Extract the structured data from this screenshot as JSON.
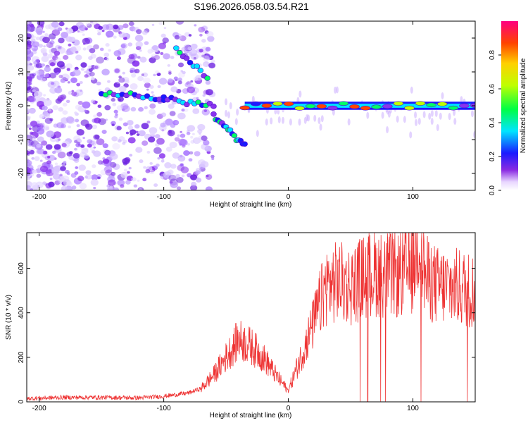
{
  "title": "S196.2026.058.03.54.R21",
  "chart_data": [
    {
      "type": "heatmap",
      "xlabel": "Height of straight line (km)",
      "ylabel": "Frequency (Hz)",
      "xlim": [
        -210,
        150
      ],
      "ylim": [
        -25,
        25
      ],
      "xticks": [
        -200,
        -100,
        0,
        100
      ],
      "yticks": [
        -20,
        -10,
        0,
        10,
        20
      ],
      "colorbar": {
        "label": "Normalized spectral amplitude",
        "range": [
          0,
          1
        ],
        "ticks": [
          0.0,
          0.2,
          0.4,
          0.6,
          0.8
        ]
      },
      "ridge": {
        "segments": [
          {
            "x": [
              -150,
              -100
            ],
            "freq": [
              4,
              2
            ]
          },
          {
            "x": [
              -100,
              -60
            ],
            "freq": [
              2,
              0
            ]
          },
          {
            "x": [
              -60,
              -35
            ],
            "freq": [
              -3,
              -12
            ]
          },
          {
            "x": [
              -35,
              150
            ],
            "freq": [
              0,
              0
            ]
          }
        ],
        "branch_upper": {
          "x": [
            -90,
            -65
          ],
          "freq": [
            17,
            8
          ]
        }
      }
    },
    {
      "type": "line",
      "xlabel": "Height of straight line (km)",
      "ylabel": "SNR (10 * v/v)",
      "xlim": [
        -210,
        150
      ],
      "ylim": [
        0,
        760
      ],
      "xticks": [
        -200,
        -100,
        0,
        100
      ],
      "yticks": [
        0,
        200,
        400,
        600
      ],
      "series": [
        {
          "name": "SNR",
          "color": "#ee3333",
          "x": [
            -210,
            -180,
            -150,
            -120,
            -100,
            -80,
            -70,
            -60,
            -50,
            -40,
            -30,
            -20,
            -10,
            0,
            10,
            20,
            30,
            40,
            50,
            60,
            70,
            80,
            90,
            100,
            105,
            110,
            120,
            130,
            140,
            150
          ],
          "y": [
            15,
            20,
            20,
            18,
            25,
            40,
            60,
            120,
            200,
            280,
            250,
            200,
            120,
            50,
            200,
            350,
            520,
            540,
            520,
            560,
            580,
            570,
            570,
            600,
            760,
            560,
            520,
            520,
            510,
            500
          ]
        }
      ]
    }
  ]
}
